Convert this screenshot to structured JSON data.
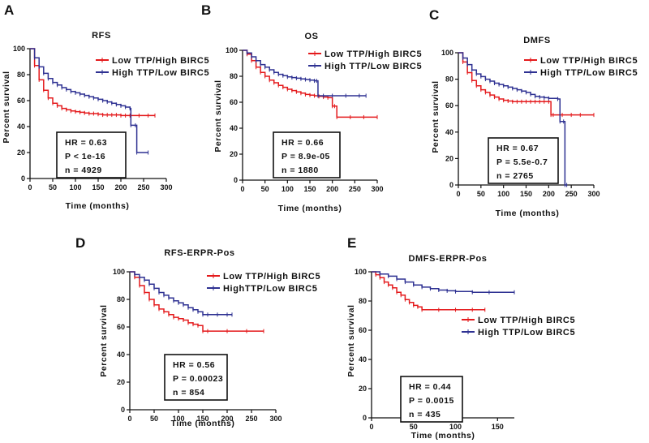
{
  "chart_data": [
    {
      "id": "A",
      "panel_letter": "A",
      "type": "line",
      "title": "RFS",
      "xlabel": "Time (months)",
      "ylabel": "Percent survival",
      "xlim": [
        0,
        300
      ],
      "ylim": [
        0,
        100
      ],
      "xticks": [
        0,
        50,
        100,
        150,
        200,
        250,
        300
      ],
      "yticks": [
        0,
        20,
        40,
        60,
        80,
        100
      ],
      "legend": "top-right",
      "series": [
        {
          "name": "Low TTP/High BIRC5",
          "color": "#e41a1c",
          "x": [
            0,
            10,
            20,
            30,
            40,
            50,
            60,
            70,
            80,
            90,
            100,
            110,
            120,
            130,
            140,
            150,
            160,
            170,
            180,
            190,
            200,
            210,
            220,
            240,
            260,
            275
          ],
          "y": [
            100,
            87,
            76,
            68,
            62,
            58,
            56,
            54,
            53,
            52,
            51.5,
            51,
            50.5,
            50,
            50,
            49.5,
            49,
            49,
            49,
            49,
            48.5,
            48.5,
            48.5,
            48.5,
            48.5,
            48.5
          ]
        },
        {
          "name": "High TTP/Low BIRC5",
          "color": "#2e3192",
          "x": [
            0,
            10,
            20,
            30,
            40,
            50,
            60,
            70,
            80,
            90,
            100,
            110,
            120,
            130,
            140,
            150,
            160,
            170,
            180,
            190,
            200,
            210,
            220,
            222,
            232,
            235,
            260
          ],
          "y": [
            100,
            93,
            86,
            81,
            77,
            74,
            72,
            70,
            68.5,
            67,
            66,
            65,
            64,
            63,
            62,
            61,
            60,
            59,
            58,
            57,
            56,
            55,
            54,
            41,
            41,
            20,
            20
          ]
        }
      ],
      "stats": [
        "HR = 0.63",
        "P < 1e-16",
        "n = 4929"
      ]
    },
    {
      "id": "B",
      "panel_letter": "B",
      "type": "line",
      "title": "OS",
      "xlabel": "Time (months)",
      "ylabel": "Percent survival",
      "xlim": [
        0,
        300
      ],
      "ylim": [
        0,
        100
      ],
      "xticks": [
        0,
        50,
        100,
        150,
        200,
        250,
        300
      ],
      "yticks": [
        0,
        20,
        40,
        60,
        80,
        100
      ],
      "legend": "top-right",
      "series": [
        {
          "name": "Low TTP/High BIRC5",
          "color": "#e41a1c",
          "x": [
            0,
            10,
            20,
            30,
            40,
            50,
            60,
            70,
            80,
            90,
            100,
            110,
            120,
            130,
            140,
            150,
            160,
            170,
            180,
            190,
            200,
            205,
            210,
            240,
            270,
            300
          ],
          "y": [
            100,
            97,
            92,
            87,
            83,
            80,
            77,
            75,
            73,
            71.5,
            70,
            69,
            68,
            67,
            66,
            65.5,
            65,
            64.5,
            64,
            63.5,
            57,
            57,
            48.5,
            48.5,
            48.5,
            48.5
          ]
        },
        {
          "name": "High TTP/Low BIRC5",
          "color": "#2e3192",
          "x": [
            0,
            10,
            20,
            30,
            40,
            50,
            60,
            70,
            80,
            90,
            100,
            110,
            120,
            130,
            140,
            150,
            160,
            165,
            168,
            180,
            200,
            230,
            260,
            275
          ],
          "y": [
            100,
            98,
            95,
            92,
            89,
            87,
            85,
            83,
            81.5,
            80.5,
            79.5,
            79,
            78.5,
            78,
            77.5,
            77,
            76.5,
            76.5,
            65,
            65,
            65,
            65,
            65,
            65
          ]
        }
      ],
      "stats": [
        "HR = 0.66",
        "P = 8.9e-05",
        "n = 1880"
      ]
    },
    {
      "id": "C",
      "panel_letter": "C",
      "type": "line",
      "title": "DMFS",
      "xlabel": "Time (months)",
      "ylabel": "Percent survival",
      "xlim": [
        0,
        300
      ],
      "ylim": [
        0,
        100
      ],
      "xticks": [
        0,
        50,
        100,
        150,
        200,
        250,
        300
      ],
      "yticks": [
        0,
        20,
        40,
        60,
        80,
        100
      ],
      "legend": "top-right",
      "series": [
        {
          "name": "Low TTP/High BIRC5",
          "color": "#e41a1c",
          "x": [
            0,
            10,
            20,
            30,
            40,
            50,
            60,
            70,
            80,
            90,
            100,
            110,
            120,
            130,
            140,
            150,
            160,
            170,
            180,
            190,
            200,
            205,
            210,
            230,
            250,
            270,
            300
          ],
          "y": [
            100,
            93,
            85,
            79,
            75,
            72,
            70,
            68,
            66.5,
            65,
            64,
            63.5,
            63,
            63,
            63,
            63,
            63,
            63,
            63,
            63,
            63,
            53,
            53,
            53,
            53,
            53,
            53
          ]
        },
        {
          "name": "High TTP/Low BIRC5",
          "color": "#2e3192",
          "x": [
            0,
            10,
            20,
            30,
            40,
            50,
            60,
            70,
            80,
            90,
            100,
            110,
            120,
            130,
            140,
            150,
            160,
            170,
            180,
            190,
            200,
            220,
            225,
            233,
            236,
            240
          ],
          "y": [
            100,
            96,
            91,
            87,
            84,
            82,
            80,
            78.5,
            77,
            76,
            75,
            74,
            73,
            72,
            71,
            70,
            68.5,
            67,
            66.5,
            66,
            65.5,
            65,
            48,
            48,
            0,
            0
          ]
        }
      ],
      "stats": [
        "HR = 0.67",
        "P = 5.5e-0.7",
        "n = 2765"
      ]
    },
    {
      "id": "D",
      "panel_letter": "D",
      "type": "line",
      "title": "RFS-ERPR-Pos",
      "xlabel": "Time (months)",
      "ylabel": "Percent survival",
      "xlim": [
        0,
        300
      ],
      "ylim": [
        0,
        100
      ],
      "xticks": [
        0,
        50,
        100,
        150,
        200,
        250,
        300
      ],
      "yticks": [
        0,
        20,
        40,
        60,
        80,
        100
      ],
      "legend": "top-right",
      "series": [
        {
          "name": "Low TTP/High BIRC5",
          "color": "#e41a1c",
          "x": [
            0,
            10,
            20,
            30,
            40,
            50,
            60,
            70,
            80,
            90,
            100,
            110,
            120,
            130,
            140,
            150,
            160,
            200,
            240,
            275
          ],
          "y": [
            100,
            96,
            90,
            85,
            80,
            76,
            73,
            71,
            69,
            67,
            66,
            65,
            63,
            62,
            61,
            57,
            57,
            57,
            57,
            57
          ]
        },
        {
          "name": "HighTTP/Low BIRC5",
          "color": "#2e3192",
          "x": [
            0,
            10,
            20,
            30,
            40,
            50,
            60,
            70,
            80,
            90,
            100,
            110,
            120,
            130,
            140,
            150,
            160,
            180,
            200,
            210
          ],
          "y": [
            100,
            98,
            96,
            94,
            91,
            88,
            85,
            83,
            81,
            79,
            77.5,
            76,
            74,
            72.5,
            71,
            69,
            69,
            69,
            69,
            69
          ]
        }
      ],
      "stats": [
        "HR = 0.56",
        "P = 0.00023",
        "n = 854"
      ]
    },
    {
      "id": "E",
      "panel_letter": "E",
      "type": "line",
      "title": "DMFS-ERPR-Pos",
      "xlabel": "Time (months)",
      "ylabel": "Percent survival",
      "xlim": [
        0,
        170
      ],
      "ylim": [
        0,
        100
      ],
      "xticks": [
        0,
        50,
        100,
        150
      ],
      "yticks": [
        0,
        20,
        40,
        60,
        80,
        100
      ],
      "legend": "middle-right",
      "series": [
        {
          "name": "Low TTP/High BIRC5",
          "color": "#e41a1c",
          "x": [
            0,
            5,
            10,
            15,
            20,
            25,
            30,
            35,
            40,
            45,
            50,
            55,
            60,
            80,
            100,
            120,
            135
          ],
          "y": [
            100,
            98,
            96,
            93,
            91,
            89,
            86,
            84,
            81,
            79,
            77,
            76,
            74,
            74,
            74,
            74,
            74
          ]
        },
        {
          "name": "High TTP/Low BIRC5",
          "color": "#2e3192",
          "x": [
            0,
            10,
            20,
            30,
            40,
            50,
            60,
            70,
            80,
            90,
            100,
            120,
            140,
            170
          ],
          "y": [
            100,
            98.5,
            97,
            95,
            93,
            91,
            89.5,
            88.5,
            87.5,
            87,
            86.5,
            86,
            86,
            86
          ]
        }
      ],
      "stats": [
        "HR = 0.44",
        "P = 0.0015",
        "n = 435"
      ]
    }
  ]
}
